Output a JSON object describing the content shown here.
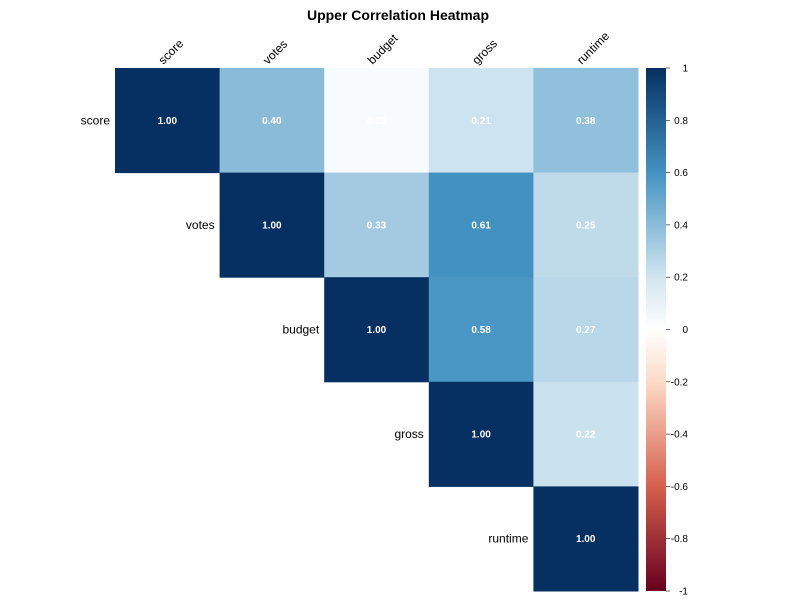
{
  "chart_data": {
    "type": "heatmap",
    "title": "Upper Correlation Heatmap",
    "variables": [
      "score",
      "votes",
      "budget",
      "gross",
      "runtime"
    ],
    "matrix": [
      [
        1.0,
        0.4,
        0.03,
        0.21,
        0.38
      ],
      [
        null,
        1.0,
        0.33,
        0.61,
        0.25
      ],
      [
        null,
        null,
        1.0,
        0.58,
        0.27
      ],
      [
        null,
        null,
        null,
        1.0,
        0.22
      ],
      [
        null,
        null,
        null,
        null,
        1.0
      ]
    ],
    "triangle": "upper",
    "colorbar": {
      "range": [
        -1,
        1
      ],
      "ticks": [
        "1",
        "0.8",
        "0.6",
        "0.4",
        "0.2",
        "0",
        "-0.2",
        "-0.4",
        "-0.6",
        "-0.8",
        "-1"
      ],
      "colors": {
        "neg_strong": "#67001F",
        "neg_mid": "#D6604D",
        "neg_light": "#FDDBC7",
        "zero": "#FFFFFF",
        "pos_light": "#D1E5F0",
        "pos_mid": "#4393C3",
        "pos_strong": "#053061"
      }
    }
  }
}
